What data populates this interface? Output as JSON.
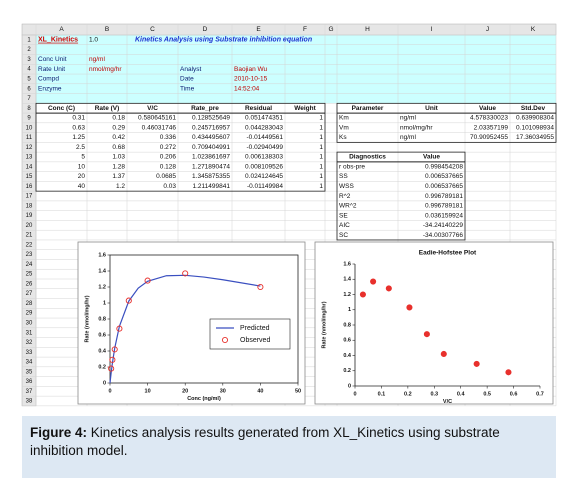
{
  "sheet": {
    "columns": [
      "A",
      "B",
      "C",
      "D",
      "E",
      "F",
      "G",
      "H",
      "I",
      "J",
      "K"
    ],
    "row_numbers": [
      "1",
      "2",
      "3",
      "4",
      "5",
      "6",
      "7",
      "8",
      "9",
      "10",
      "11",
      "12",
      "13",
      "14",
      "15",
      "16",
      "17",
      "18",
      "19",
      "20",
      "21",
      "22",
      "23",
      "24",
      "25",
      "26",
      "27",
      "28",
      "29",
      "30",
      "31",
      "32",
      "33",
      "34",
      "35",
      "36",
      "37",
      "38"
    ],
    "rows": [
      [
        "XL_Kinetics",
        "1.0",
        "Kinetics Analysis using Substrate inhibition equation",
        null,
        null,
        null,
        null,
        null,
        null,
        null,
        null
      ],
      [
        null,
        null,
        null,
        null,
        null,
        null,
        null,
        null,
        null,
        null,
        null
      ],
      [
        "Conc Unit",
        "ng/ml",
        null,
        null,
        null,
        null,
        null,
        null,
        null,
        null,
        null
      ],
      [
        "Rate Unit",
        "nmol/mg/hr",
        null,
        "Analyst",
        "Baojian Wu",
        null,
        null,
        null,
        null,
        null,
        null
      ],
      [
        "Compd",
        null,
        null,
        "Date",
        "2010-10-15",
        null,
        null,
        null,
        null,
        null,
        null
      ],
      [
        "Enzyme",
        null,
        null,
        "Time",
        "14:52:04",
        null,
        null,
        null,
        null,
        null,
        null
      ],
      [
        null,
        null,
        null,
        null,
        null,
        null,
        null,
        null,
        null,
        null,
        null
      ],
      [
        "Conc (C)",
        "Rate (V)",
        "V/C",
        "Rate_pre",
        "Residual",
        "Weight",
        null,
        "Parameter",
        "Unit",
        "Value",
        "Std.Dev"
      ],
      [
        "0.31",
        "0.18",
        "0.580645161",
        "0.128525649",
        "0.051474351",
        "1",
        null,
        "Km",
        "ng/ml",
        "4.578330023",
        "0.639908304"
      ],
      [
        "0.63",
        "0.29",
        "0.46031746",
        "0.245716957",
        "0.044283043",
        "1",
        null,
        "Vm",
        "nmol/mg/hr",
        "2.03357199",
        "0.101098934"
      ],
      [
        "1.25",
        "0.42",
        "0.336",
        "0.434495607",
        "-0.01449561",
        "1",
        null,
        "Ks",
        "ng/ml",
        "70.90952455",
        "17.36034955"
      ],
      [
        "2.5",
        "0.68",
        "0.272",
        "0.709404991",
        "-0.02940499",
        "1",
        null,
        null,
        null,
        null,
        null
      ],
      [
        "5",
        "1.03",
        "0.206",
        "1.023861697",
        "0.006138303",
        "1",
        null,
        "Diagnostics",
        "Value",
        null,
        null
      ],
      [
        "10",
        "1.28",
        "0.128",
        "1.271890474",
        "0.008109526",
        "1",
        null,
        "r obs-pre",
        "0.998454208",
        null,
        null
      ],
      [
        "20",
        "1.37",
        "0.0685",
        "1.345875355",
        "0.024124645",
        "1",
        null,
        "SS",
        "0.006537665",
        null,
        null
      ],
      [
        "40",
        "1.2",
        "0.03",
        "1.211499841",
        "-0.01149984",
        "1",
        null,
        "WSS",
        "0.006537665",
        null,
        null
      ],
      [
        null,
        null,
        null,
        null,
        null,
        null,
        null,
        "R^2",
        "0.996789181",
        null,
        null
      ],
      [
        null,
        null,
        null,
        null,
        null,
        null,
        null,
        "WR^2",
        "0.996789181",
        null,
        null
      ],
      [
        null,
        null,
        null,
        null,
        null,
        null,
        null,
        "SE",
        "0.036159924",
        null,
        null
      ],
      [
        null,
        null,
        null,
        null,
        null,
        null,
        null,
        "AIC",
        "-34.24140229",
        null,
        null
      ],
      [
        null,
        null,
        null,
        null,
        null,
        null,
        null,
        "SC",
        "-34.00307766",
        null,
        null
      ]
    ]
  },
  "chart_data": [
    {
      "type": "scatter",
      "x_label": "Conc (ng/ml)",
      "y_label": "Rate (nmol/mg/hr)",
      "xlim": [
        0,
        50
      ],
      "xticks": [
        0,
        10,
        20,
        30,
        40,
        50
      ],
      "ylim": [
        0,
        1.6
      ],
      "yticks": [
        0,
        0.2,
        0.4,
        0.6,
        0.8,
        1,
        1.2,
        1.4,
        1.6
      ],
      "legend": "lower right",
      "series": [
        {
          "name": "Predicted",
          "mode": "line",
          "color": "#3a4fc0",
          "x": [
            0,
            0.31,
            0.63,
            1.25,
            2.5,
            5,
            7.5,
            10,
            15,
            20,
            25,
            30,
            40
          ],
          "values": [
            0,
            0.1285,
            0.2457,
            0.4345,
            0.7094,
            1.0239,
            1.185,
            1.2719,
            1.341,
            1.3459,
            1.324,
            1.2906,
            1.2115
          ]
        },
        {
          "name": "Observed",
          "mode": "marker",
          "filled": false,
          "color": "#e8302c",
          "x": [
            0.31,
            0.63,
            1.25,
            2.5,
            5,
            10,
            20,
            40
          ],
          "values": [
            0.18,
            0.29,
            0.42,
            0.68,
            1.03,
            1.28,
            1.37,
            1.2
          ]
        }
      ]
    },
    {
      "type": "scatter",
      "title": "Eadie-Hofstee Plot",
      "x_label": "V/C",
      "y_label": "Rate (nmol/mg/hr)",
      "xlim": [
        0,
        0.7
      ],
      "xticks": [
        0,
        0.1,
        0.2,
        0.3,
        0.4,
        0.5,
        0.6,
        0.7
      ],
      "ylim": [
        0,
        1.6
      ],
      "yticks": [
        0,
        0.2,
        0.4,
        0.6,
        0.8,
        1,
        1.2,
        1.4,
        1.6
      ],
      "series": [
        {
          "mode": "marker",
          "filled": true,
          "color": "#e8302c",
          "x": [
            0.580645161,
            0.46031746,
            0.336,
            0.272,
            0.206,
            0.128,
            0.0685,
            0.03
          ],
          "values": [
            0.18,
            0.29,
            0.42,
            0.68,
            1.03,
            1.28,
            1.37,
            1.2
          ]
        }
      ]
    }
  ],
  "caption": {
    "label": "Figure 4:",
    "text": "Kinetics analysis results generated from XL_Kinetics using substrate inhibition model."
  }
}
